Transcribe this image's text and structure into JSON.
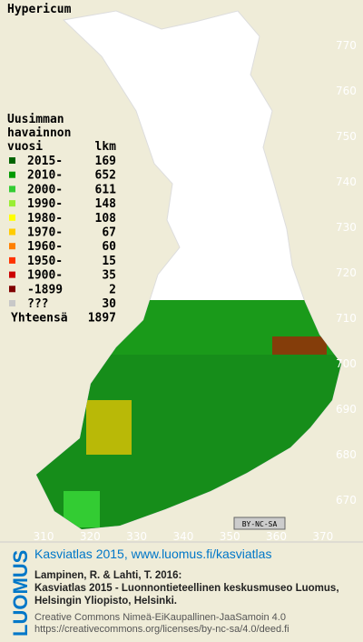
{
  "title": "Hypericum",
  "legend": {
    "heading": [
      "Uusimman",
      "havainnon"
    ],
    "col1": "vuosi",
    "col2": "lkm",
    "rows": [
      {
        "label": "2015-",
        "count": 169,
        "color": "#006400"
      },
      {
        "label": "2010-",
        "count": 652,
        "color": "#009a00"
      },
      {
        "label": "2000-",
        "count": 611,
        "color": "#33cc33"
      },
      {
        "label": "1990-",
        "count": 148,
        "color": "#99ee33"
      },
      {
        "label": "1980-",
        "count": 108,
        "color": "#ffff00"
      },
      {
        "label": "1970-",
        "count": 67,
        "color": "#ffcc00"
      },
      {
        "label": "1960-",
        "count": 60,
        "color": "#ff8000"
      },
      {
        "label": "1950-",
        "count": 15,
        "color": "#ff3300"
      },
      {
        "label": "1900-",
        "count": 35,
        "color": "#cc0000"
      },
      {
        "label": "-1899",
        "count": 2,
        "color": "#800000"
      },
      {
        "label": "???",
        "count": 30,
        "color": "#c8c8c8"
      }
    ],
    "total_label": "Yhteensä",
    "total": 1897
  },
  "grid": {
    "y_labels": [
      670,
      680,
      690,
      700,
      710,
      720,
      730,
      740,
      750,
      760,
      770
    ],
    "x_labels": [
      310,
      320,
      330,
      340,
      350,
      360,
      370
    ]
  },
  "badge": "BY-NC-SA",
  "footer": {
    "brand": "LUOMUS",
    "link": "Kasviatlas 2015, www.luomus.fi/kasviatlas",
    "citation": [
      "Lampinen, R. & Lahti, T. 2016:",
      "Kasviatlas 2015 - Luonnontieteellinen keskusmuseo Luomus,",
      "Helsingin Yliopisto, Helsinki."
    ],
    "license": [
      "Creative Commons Nimeä-EiKaupallinen-JaaSamoin 4.0",
      "https://creativecommons.org/licenses/by-nc-sa/4.0/deed.fi"
    ]
  }
}
